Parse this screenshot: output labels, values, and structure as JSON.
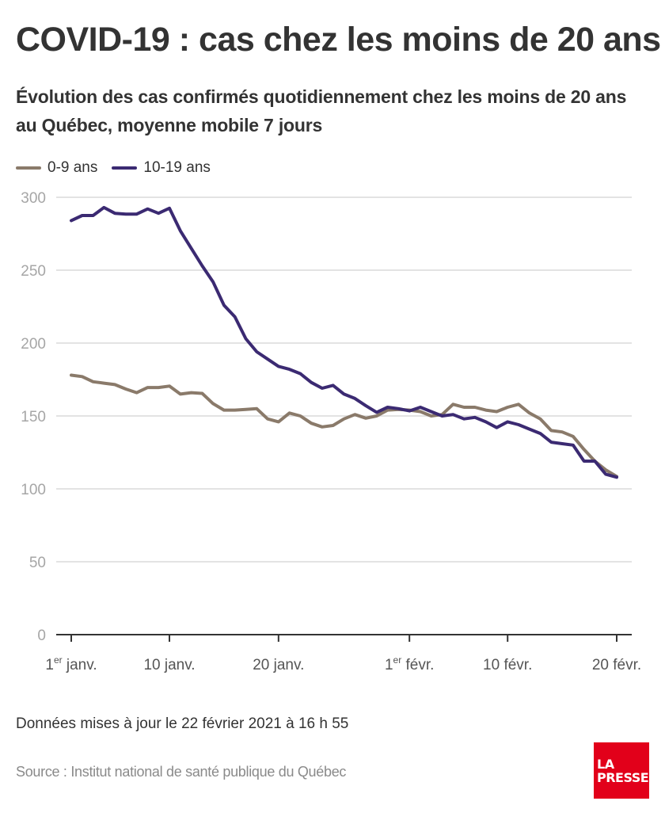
{
  "header": {
    "title": "COVID-19 : cas chez les moins de 20 ans",
    "subtitle": "Évolution des cas confirmés quotidiennement chez les moins de 20 ans au Québec, moyenne mobile 7 jours"
  },
  "legend": [
    {
      "label": "0-9 ans",
      "color": "#8a7a6a"
    },
    {
      "label": "10-19 ans",
      "color": "#3b2a72"
    }
  ],
  "footer": {
    "updated": "Données mises à jour le 22 février 2021 à 16 h 55",
    "source": "Source : Institut national de santé publique du Québec"
  },
  "logo": {
    "line1": "LA",
    "line2": "PRESSE",
    "color": "#e2001a"
  },
  "chart_data": {
    "type": "line",
    "title": "COVID-19 : cas chez les moins de 20 ans",
    "subtitle": "Évolution des cas confirmés quotidiennement chez les moins de 20 ans au Québec, moyenne mobile 7 jours",
    "xlabel": "",
    "ylabel": "",
    "x_start": "2021-01-01",
    "x_end": "2021-02-20",
    "x_unit": "day",
    "ylim": [
      0,
      300
    ],
    "yticks": [
      0,
      50,
      100,
      150,
      200,
      250,
      300
    ],
    "xticks": [
      {
        "day": 0,
        "main": "1",
        "sup": "er",
        "rest": " janv."
      },
      {
        "day": 9,
        "main": "10 janv.",
        "sup": "",
        "rest": ""
      },
      {
        "day": 19,
        "main": "20 janv.",
        "sup": "",
        "rest": ""
      },
      {
        "day": 31,
        "main": "1",
        "sup": "er",
        "rest": " févr."
      },
      {
        "day": 40,
        "main": "10 févr.",
        "sup": "",
        "rest": ""
      },
      {
        "day": 50,
        "main": "20 févr.",
        "sup": "",
        "rest": ""
      }
    ],
    "grid": true,
    "legend_position": "top-left",
    "series": [
      {
        "name": "0-9 ans",
        "color": "#8a7a6a",
        "values": [
          178,
          177,
          173.5,
          172.5,
          171.5,
          168.5,
          166,
          169.5,
          169.5,
          170.5,
          165,
          166,
          165.5,
          158.5,
          154,
          154,
          154.5,
          155,
          148,
          146,
          152,
          150,
          145,
          142.5,
          143.5,
          148,
          151,
          148.5,
          150,
          154,
          154.5,
          154,
          153,
          150,
          151,
          158,
          156,
          156,
          154,
          153,
          156,
          158,
          152,
          148,
          140,
          139,
          136,
          127,
          119,
          113,
          108.5
        ]
      },
      {
        "name": "10-19 ans",
        "color": "#3b2a72",
        "values": [
          284,
          287.5,
          287.5,
          293,
          289,
          288.5,
          288.5,
          292,
          289,
          292.5,
          277,
          265,
          253,
          242,
          226,
          218,
          203,
          194,
          189,
          184,
          182,
          179,
          173,
          169,
          171,
          165,
          162,
          157,
          152.5,
          156,
          155,
          153.5,
          156,
          153,
          150,
          151,
          148,
          149,
          146,
          142,
          146,
          144,
          141,
          138,
          132,
          131,
          130,
          119,
          119,
          110,
          108
        ]
      }
    ]
  }
}
